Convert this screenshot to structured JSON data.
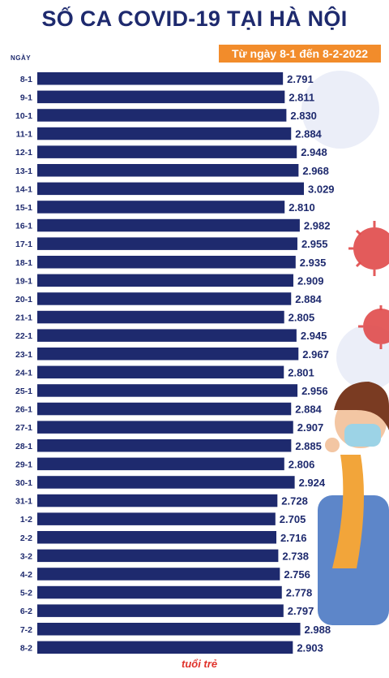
{
  "title": "SỐ CA COVID-19 TẠI HÀ NỘI",
  "subtitle": "Từ ngày 8-1 đến 8-2-2022",
  "logo": "tuoi tre",
  "colors": {
    "bar": "#1e2a6e",
    "accent": "#f28c2b",
    "virus": "#e04a4a"
  },
  "chart_data": {
    "type": "bar",
    "orientation": "horizontal",
    "xlabel": "",
    "ylabel": "NGÀY",
    "categories": [
      "8-1",
      "9-1",
      "10-1",
      "11-1",
      "12-1",
      "13-1",
      "14-1",
      "15-1",
      "16-1",
      "17-1",
      "18-1",
      "19-1",
      "20-1",
      "21-1",
      "22-1",
      "23-1",
      "24-1",
      "25-1",
      "26-1",
      "27-1",
      "28-1",
      "29-1",
      "30-1",
      "31-1",
      "1-2",
      "2-2",
      "3-2",
      "4-2",
      "5-2",
      "6-2",
      "7-2",
      "8-2"
    ],
    "values": [
      2791,
      2811,
      2830,
      2884,
      2948,
      2968,
      3029,
      2810,
      2982,
      2955,
      2935,
      2909,
      2884,
      2805,
      2945,
      2967,
      2801,
      2956,
      2884,
      2907,
      2885,
      2806,
      2924,
      2728,
      2705,
      2716,
      2738,
      2756,
      2778,
      2797,
      2988,
      2903
    ],
    "value_labels": [
      "2.791",
      "2.811",
      "2.830",
      "2.884",
      "2.948",
      "2.968",
      "3.029",
      "2.810",
      "2.982",
      "2.955",
      "2.935",
      "2.909",
      "2.884",
      "2.805",
      "2.945",
      "2.967",
      "2.801",
      "2.956",
      "2.884",
      "2.907",
      "2.885",
      "2.806",
      "2.924",
      "2.728",
      "2.705",
      "2.716",
      "2.738",
      "2.756",
      "2.778",
      "2.797",
      "2.988",
      "2.903"
    ],
    "xlim": [
      0,
      3029
    ],
    "grid": false
  }
}
